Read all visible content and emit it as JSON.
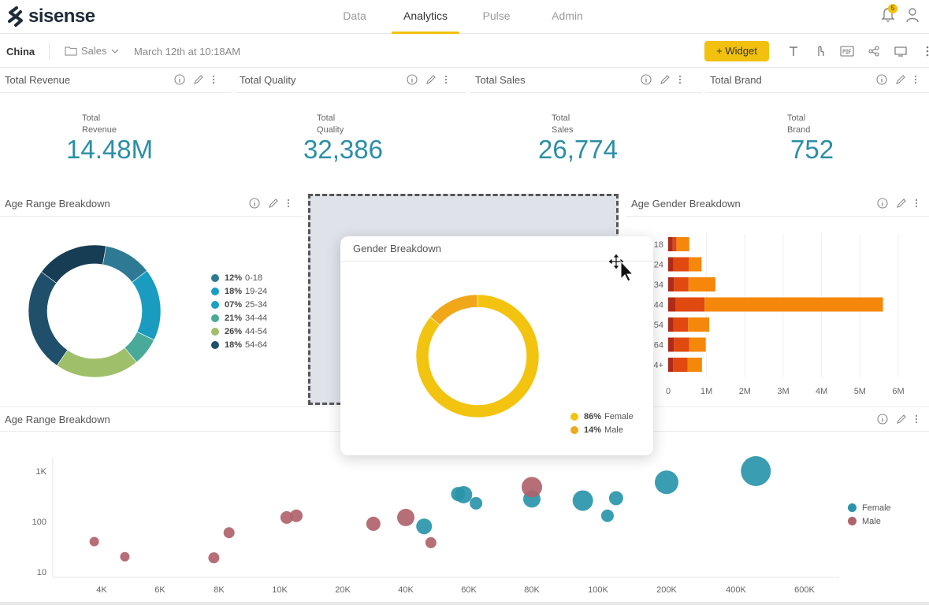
{
  "app": {
    "logo_text": "sisense"
  },
  "nav": {
    "tabs": [
      "Data",
      "Analytics",
      "Pulse",
      "Admin"
    ],
    "active_index": 1
  },
  "notifications": {
    "count": "5"
  },
  "toolbar": {
    "dashboard_title": "China",
    "folder_label": "Sales",
    "timestamp": "March 12th at 10:18AM",
    "widget_button": "+ Widget"
  },
  "kpis": [
    {
      "header": "Total Revenue",
      "label_line1": "Total",
      "label_line2": "Revenue",
      "value": "14.48M"
    },
    {
      "header": "Total Quality",
      "label_line1": "Total",
      "label_line2": "Quality",
      "value": "32,386"
    },
    {
      "header": "Total Sales",
      "label_line1": "Total",
      "label_line2": "Sales",
      "value": "26,774"
    },
    {
      "header": "Total Brand",
      "label_line1": "Total",
      "label_line2": "Brand",
      "value": "752"
    }
  ],
  "age_range_widget": {
    "title": "Age Range Breakdown",
    "legend": [
      {
        "pct": "12%",
        "label": "0-18",
        "color": "#2e7a94"
      },
      {
        "pct": "18%",
        "label": "19-24",
        "color": "#1a9cc0"
      },
      {
        "pct": "07%",
        "label": "25-34",
        "color": "#17a2c4"
      },
      {
        "pct": "21%",
        "label": "34-44",
        "color": "#4aaa9a"
      },
      {
        "pct": "26%",
        "label": "44-54",
        "color": "#a0bf6a"
      },
      {
        "pct": "18%",
        "label": "54-64",
        "color": "#1f4f6b"
      }
    ]
  },
  "gender_popup": {
    "title": "Gender Breakdown",
    "legend": [
      {
        "pct": "86%",
        "label": "Female",
        "color": "#f2c40f"
      },
      {
        "pct": "14%",
        "label": "Male",
        "color": "#f0a71a"
      }
    ]
  },
  "age_gender_widget": {
    "title": "Age Gender Breakdown",
    "category_labels": [
      "18",
      "24",
      "34",
      "44",
      "54",
      "64",
      "4+"
    ],
    "x_ticks": [
      "0",
      "1M",
      "2M",
      "3M",
      "4M",
      "5M",
      "6M"
    ]
  },
  "scatter_widget": {
    "title": "Age Range Breakdown",
    "y_ticks": [
      "1K",
      "100",
      "10"
    ],
    "x_ticks": [
      "4K",
      "6K",
      "8K",
      "10K",
      "20K",
      "40K",
      "60K",
      "80K",
      "100K",
      "200K",
      "400K",
      "600K"
    ],
    "legend": [
      {
        "label": "Female",
        "color": "#2a95aa"
      },
      {
        "label": "Male",
        "color": "#b0636b"
      }
    ]
  },
  "chart_data": [
    {
      "type": "pie",
      "title": "Age Range Breakdown",
      "labels": [
        "0-18",
        "19-24",
        "25-34",
        "34-44",
        "44-54",
        "54-64"
      ],
      "values": [
        12,
        18,
        7,
        21,
        26,
        18
      ],
      "colors": [
        "#2e7a94",
        "#1a9cc0",
        "#4aaa9a",
        "#a0bf6a",
        "#1f4f6b",
        "#173d55"
      ]
    },
    {
      "type": "pie",
      "title": "Gender Breakdown",
      "labels": [
        "Female",
        "Male"
      ],
      "values": [
        86,
        14
      ],
      "colors": [
        "#f2c40f",
        "#f0a71a"
      ]
    },
    {
      "type": "bar",
      "title": "Age Gender Breakdown",
      "orientation": "horizontal",
      "stacked": true,
      "categories": [
        "18",
        "24",
        "34",
        "44",
        "54",
        "64",
        "4+"
      ],
      "series": [
        {
          "values": [
            120000,
            140000,
            150000,
            200000,
            140000,
            150000,
            130000
          ],
          "color": "#b02a1a"
        },
        {
          "values": [
            100000,
            400000,
            380000,
            750000,
            380000,
            400000,
            380000
          ],
          "color": "#e0490f"
        },
        {
          "values": [
            330000,
            330000,
            700000,
            4650000,
            550000,
            430000,
            370000
          ],
          "color": "#f5870a"
        }
      ],
      "xlim": [
        0,
        6000000
      ]
    },
    {
      "type": "scatter",
      "title": "Age Range Breakdown",
      "x_scale": "log",
      "y_scale": "log",
      "series": [
        {
          "name": "Female",
          "color": "#2a95aa",
          "points": [
            {
              "x": 45000,
              "y": 80,
              "r": 10
            },
            {
              "x": 56000,
              "y": 350,
              "r": 9
            },
            {
              "x": 58000,
              "y": 340,
              "r": 11
            },
            {
              "x": 62000,
              "y": 230,
              "r": 8
            },
            {
              "x": 80000,
              "y": 280,
              "r": 11
            },
            {
              "x": 95000,
              "y": 260,
              "r": 13
            },
            {
              "x": 110000,
              "y": 130,
              "r": 8
            },
            {
              "x": 120000,
              "y": 290,
              "r": 9
            },
            {
              "x": 200000,
              "y": 600,
              "r": 15
            },
            {
              "x": 450000,
              "y": 1000,
              "r": 19
            }
          ]
        },
        {
          "name": "Male",
          "color": "#b0636b",
          "points": [
            {
              "x": 3800,
              "y": 40,
              "r": 6
            },
            {
              "x": 4700,
              "y": 20,
              "r": 6
            },
            {
              "x": 7800,
              "y": 19,
              "r": 7
            },
            {
              "x": 8300,
              "y": 60,
              "r": 7
            },
            {
              "x": 10800,
              "y": 120,
              "r": 8
            },
            {
              "x": 12000,
              "y": 130,
              "r": 8
            },
            {
              "x": 28000,
              "y": 90,
              "r": 9
            },
            {
              "x": 40000,
              "y": 120,
              "r": 11
            },
            {
              "x": 47000,
              "y": 38,
              "r": 7
            },
            {
              "x": 80000,
              "y": 480,
              "r": 13
            }
          ]
        }
      ]
    }
  ]
}
